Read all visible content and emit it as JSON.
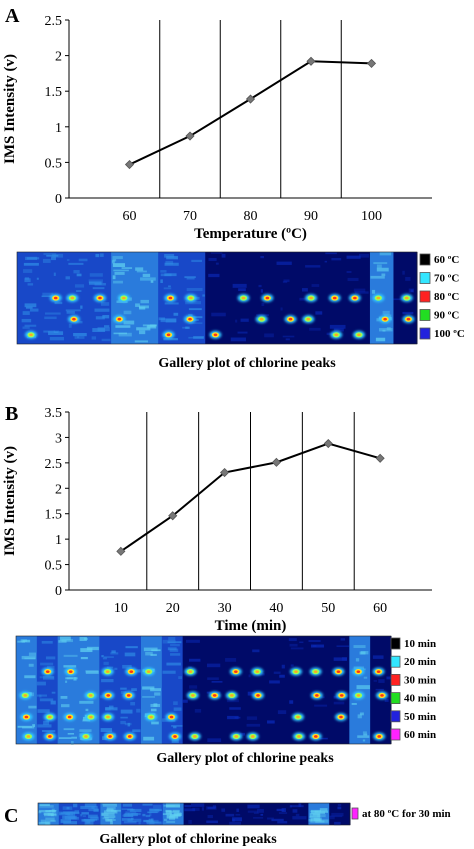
{
  "chart_data": [
    {
      "panel": "A",
      "type": "line",
      "x": [
        60,
        70,
        80,
        90,
        100
      ],
      "series": [
        {
          "values": [
            0.47,
            0.87,
            1.39,
            1.92,
            1.89
          ]
        }
      ],
      "xlabel": "Temperature (ºC)",
      "ylabel": "IMS Intensity (v)",
      "xticks": [
        "60",
        "70",
        "80",
        "90",
        "100"
      ],
      "yticks": [
        "0",
        "0.5",
        "1",
        "1.5",
        "2",
        "2.5"
      ],
      "xlim": [
        50,
        110
      ],
      "ylim": [
        0,
        2.5
      ],
      "dividers": [
        65,
        75,
        85,
        95
      ],
      "gallery": {
        "caption": "Gallery plot of chlorine peaks",
        "legend": [
          {
            "label": "60 ºC",
            "color": "#000000"
          },
          {
            "label": "70 ºC",
            "color": "#33e6ff"
          },
          {
            "label": "80 ºC",
            "color": "#ff2222"
          },
          {
            "label": "90 ºC",
            "color": "#22dd22"
          },
          {
            "label": "100 ºC",
            "color": "#2222dd"
          }
        ]
      }
    },
    {
      "panel": "B",
      "type": "line",
      "x": [
        10,
        20,
        30,
        40,
        50,
        60
      ],
      "series": [
        {
          "values": [
            0.76,
            1.46,
            2.31,
            2.51,
            2.88,
            2.59
          ]
        }
      ],
      "xlabel": "Time (min)",
      "ylabel": "IMS Intensity (v)",
      "xticks": [
        "10",
        "20",
        "30",
        "40",
        "50",
        "60"
      ],
      "yticks": [
        "0",
        "0.5",
        "1",
        "1.5",
        "2",
        "2.5",
        "3",
        "3.5"
      ],
      "xlim": [
        0,
        70
      ],
      "ylim": [
        0,
        3.5
      ],
      "dividers": [
        15,
        25,
        35,
        45,
        55
      ],
      "gallery": {
        "caption": "Gallery plot of chlorine peaks",
        "legend": [
          {
            "label": "10 min",
            "color": "#000000"
          },
          {
            "label": "20 min",
            "color": "#33e6ff"
          },
          {
            "label": "30 min",
            "color": "#ff2222"
          },
          {
            "label": "40 min",
            "color": "#22dd22"
          },
          {
            "label": "50 min",
            "color": "#2222dd"
          },
          {
            "label": "60 min",
            "color": "#ff22ff"
          }
        ]
      }
    },
    {
      "panel": "C",
      "type": "heatmap",
      "gallery": {
        "caption": "Gallery plot of chlorine peaks",
        "legend": [
          {
            "label": "at 80 ºC for 30 min",
            "color": "#ff22ff"
          }
        ]
      }
    }
  ]
}
